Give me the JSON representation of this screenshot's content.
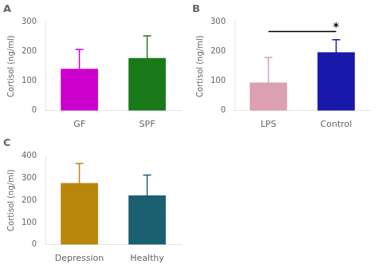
{
  "chart_data": [
    {
      "type": "bar",
      "title": "A",
      "ylabel": "Cortisol (ng/ml)",
      "categories": [
        "GF",
        "SPF"
      ],
      "values": [
        142,
        178
      ],
      "errors": [
        65,
        75
      ],
      "colors": [
        "#CC00CC",
        "#1A7A1A"
      ],
      "ylim": [
        0,
        300
      ],
      "yticks": [
        0,
        100,
        200,
        300
      ],
      "grid": false
    },
    {
      "type": "bar",
      "title": "B",
      "ylabel": "Cortisol (ng/ml)",
      "categories": [
        "LPS",
        "Control"
      ],
      "values": [
        95,
        198
      ],
      "errors": [
        85,
        42
      ],
      "colors": [
        "#DCA0B0",
        "#1818AA"
      ],
      "ylim": [
        0,
        300
      ],
      "yticks": [
        0,
        100,
        200,
        300
      ],
      "grid": false,
      "annotations": [
        {
          "text": "*",
          "y": 268,
          "x": [
            "LPS",
            "Control"
          ]
        }
      ]
    },
    {
      "type": "bar",
      "title": "C",
      "ylabel": "Cortisol (ng/ml)",
      "categories": [
        "Depression",
        "Healthy"
      ],
      "values": [
        278,
        222
      ],
      "errors": [
        88,
        92
      ],
      "colors": [
        "#B8860B",
        "#1A6070"
      ],
      "ylim": [
        0,
        400
      ],
      "yticks": [
        0,
        100,
        200,
        300,
        400
      ],
      "grid": false
    }
  ]
}
